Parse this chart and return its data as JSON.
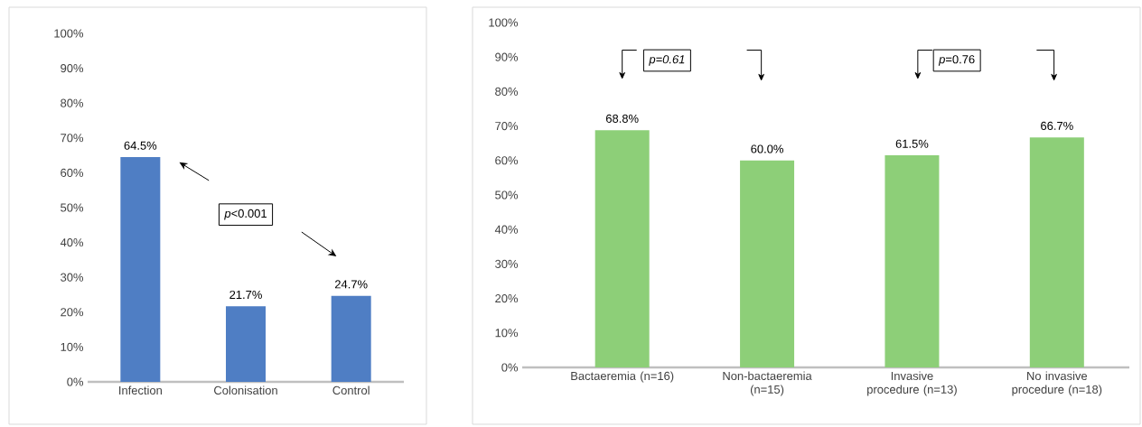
{
  "chart_data": [
    {
      "type": "bar",
      "categories": [
        "Infection",
        "Colonisation",
        "Control"
      ],
      "values": [
        64.5,
        21.7,
        24.7
      ],
      "color": "#4f7ec4",
      "value_labels": [
        "64.5%",
        "21.7%",
        "24.7%"
      ],
      "ylim": [
        0,
        100
      ],
      "yticks": [
        {
          "value": 0,
          "label": "0%"
        },
        {
          "value": 10,
          "label": "10%"
        },
        {
          "value": 20,
          "label": "20%"
        },
        {
          "value": 30,
          "label": "30%"
        },
        {
          "value": 40,
          "label": "40%"
        },
        {
          "value": 50,
          "label": "50%"
        },
        {
          "value": 60,
          "label": "60%"
        },
        {
          "value": 70,
          "label": "70%"
        },
        {
          "value": 80,
          "label": "80%"
        },
        {
          "value": 90,
          "label": "90%"
        },
        {
          "value": 100,
          "label": "100%"
        }
      ],
      "annotations": [
        "*p*<0.001"
      ]
    },
    {
      "type": "bar",
      "categories": [
        "Bactaeremia (n=16)",
        "Non-bactaeremia (n=15)",
        "Invasive procedure (n=13)",
        "No invasive procedure (n=18)"
      ],
      "values": [
        68.8,
        60.0,
        61.5,
        66.7
      ],
      "color": "#8dcf78",
      "value_labels": [
        "68.8%",
        "60.0%",
        "61.5%",
        "66.7%"
      ],
      "ylim": [
        0,
        100
      ],
      "yticks": [
        {
          "value": 0,
          "label": "0%"
        },
        {
          "value": 10,
          "label": "10%"
        },
        {
          "value": 20,
          "label": "20%"
        },
        {
          "value": 30,
          "label": "30%"
        },
        {
          "value": 40,
          "label": "40%"
        },
        {
          "value": 50,
          "label": "50%"
        },
        {
          "value": 60,
          "label": "60%"
        },
        {
          "value": 70,
          "label": "70%"
        },
        {
          "value": 80,
          "label": "80%"
        },
        {
          "value": 90,
          "label": "90%"
        },
        {
          "value": 100,
          "label": "100%"
        }
      ],
      "annotations": [
        "p=0.61",
        "*p*=0.76"
      ]
    }
  ]
}
